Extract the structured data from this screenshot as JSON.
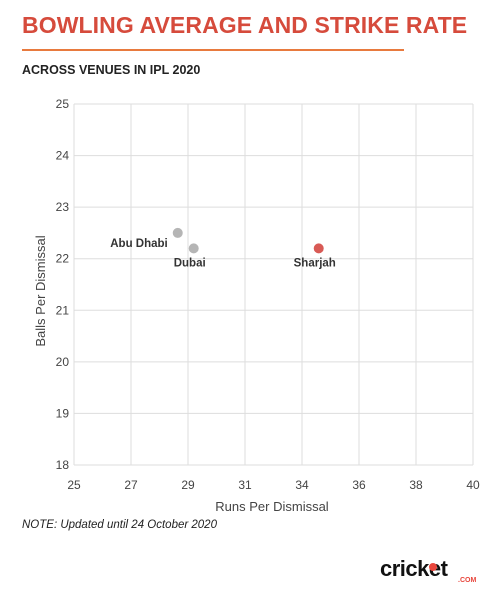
{
  "header": {
    "title": "BOWLING AVERAGE AND STRIKE RATE",
    "subtitle": "ACROSS VENUES IN IPL 2020"
  },
  "note": "NOTE: Updated until 24 October 2020",
  "logo": {
    "word": "cricket",
    "suffix": ".COM"
  },
  "colors": {
    "title": "#d64b3c",
    "rule": "#e87a3e",
    "grey_point": "#b5b5b5",
    "red_point": "#d85a55"
  },
  "chart_data": {
    "type": "scatter",
    "title": "",
    "xlabel": "Runs Per Dismissal",
    "ylabel": "Balls Per Dismissal",
    "xlim": [
      25,
      40
    ],
    "ylim": [
      18,
      25
    ],
    "x_ticks": [
      "25",
      "27",
      "29",
      "31",
      "34",
      "36",
      "38",
      "40"
    ],
    "y_ticks": [
      "18",
      "19",
      "20",
      "21",
      "22",
      "23",
      "24",
      "25"
    ],
    "grid": true,
    "points": [
      {
        "label": "Abu Dhabi",
        "x": 28.9,
        "y": 22.5,
        "color": "#b5b5b5"
      },
      {
        "label": "Dubai",
        "x": 29.5,
        "y": 22.2,
        "color": "#b5b5b5"
      },
      {
        "label": "Sharjah",
        "x": 34.2,
        "y": 22.2,
        "color": "#d85a55"
      }
    ]
  }
}
